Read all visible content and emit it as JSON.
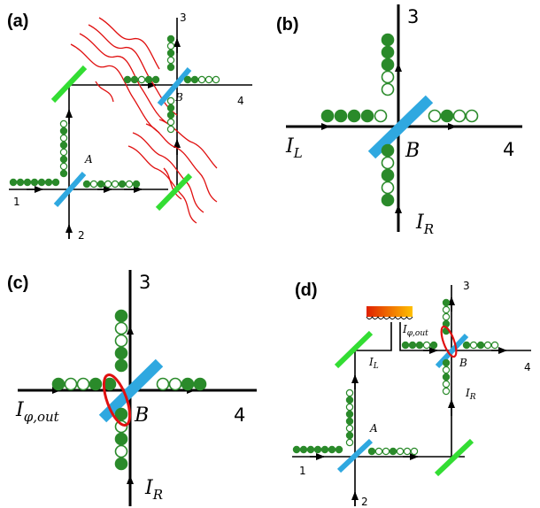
{
  "panels": {
    "a": {
      "label": "(a)",
      "ports": {
        "p1": "1",
        "p2": "2",
        "p3": "3",
        "p4": "4"
      },
      "splitters": {
        "A": "A",
        "B": "B"
      }
    },
    "b": {
      "label": "(b)",
      "ports": {
        "p3": "3",
        "p4": "4"
      },
      "splitter": "B",
      "inputs": {
        "left_main": "I",
        "left_sub": "L",
        "right_main": "I",
        "right_sub": "R"
      }
    },
    "c": {
      "label": "(c)",
      "ports": {
        "p3": "3",
        "p4": "4"
      },
      "splitter": "B",
      "inputs": {
        "left_main": "I",
        "left_sub": "φ,out",
        "right_main": "I",
        "right_sub": "R"
      }
    },
    "d": {
      "label": "(d)",
      "ports": {
        "p1": "1",
        "p2": "2",
        "p3": "3",
        "p4": "4"
      },
      "splitters": {
        "A": "A",
        "B": "B"
      },
      "labels": {
        "IL_main": "I",
        "IL_sub": "L",
        "IR_main": "I",
        "IR_sub": "R",
        "Iphi_main": "I",
        "Iphi_sub": "φ,out"
      }
    }
  },
  "colors": {
    "splitter": "#2fa8e0",
    "mirror": "#33dd33",
    "particle": "#2a8a2a",
    "wave": "#e01010",
    "loop": "#e01010",
    "line": "#000000"
  }
}
